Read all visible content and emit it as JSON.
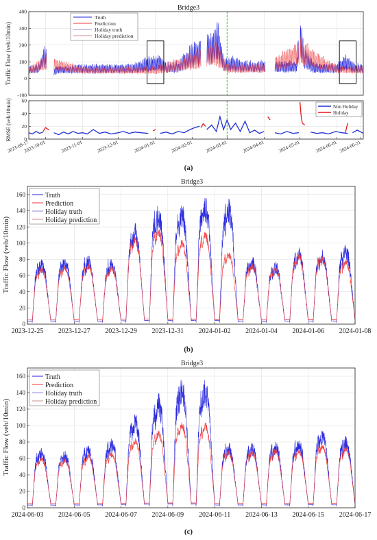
{
  "figure": {
    "captions": [
      "(a)",
      "(b)",
      "(c)"
    ]
  },
  "colors": {
    "truth": "#1f1fdc",
    "prediction": "#ee3a3a",
    "non_holiday": "#1f2fd0",
    "holiday": "#e01818",
    "marker_line": "#22cc22",
    "axis": "#222222",
    "grid": "#d9d9d9"
  },
  "chart_data": [
    {
      "id": "a_top",
      "type": "line",
      "title": "Bridge3",
      "ylabel": "Traffic Flow (veh/10min)",
      "ylim": [
        -100,
        400
      ],
      "yticks": [
        -100,
        0,
        100,
        200,
        300,
        400
      ],
      "legend_position": "top-left",
      "legend": [
        "Truth",
        "Prediction",
        "Holiday truth",
        "Holiday prediction"
      ],
      "grid": true,
      "x_range": [
        "2023-09-17",
        "2024-06-23"
      ],
      "series": [
        {
          "name": "Truth",
          "envelope": {
            "x": [
              "2023-09-17",
              "2023-09-25",
              "2023-10-01",
              "2023-10-05",
              "2023-10-10",
              "2023-10-20",
              "2023-11-01",
              "2023-11-15",
              "2023-12-01",
              "2023-12-15",
              "2023-12-29",
              "2024-01-03",
              "2024-01-10",
              "2024-01-20",
              "2024-01-28",
              "2024-02-03",
              "2024-02-10",
              "2024-02-17",
              "2024-02-22",
              "2024-02-27",
              "2024-03-01",
              "2024-03-05",
              "2024-03-12",
              "2024-03-20",
              "2024-04-01",
              "2024-04-10",
              "2024-04-20",
              "2024-04-28",
              "2024-05-01",
              "2024-05-05",
              "2024-05-12",
              "2024-05-20",
              "2024-06-01",
              "2024-06-08",
              "2024-06-10",
              "2024-06-15",
              "2024-06-23"
            ],
            "upper": [
              75,
              95,
              220,
              0,
              80,
              85,
              90,
              90,
              90,
              95,
              150,
              160,
              100,
              110,
              190,
              230,
              260,
              290,
              370,
              150,
              120,
              140,
              115,
              110,
              115,
              110,
              110,
              110,
              380,
              200,
              100,
              95,
              100,
              150,
              160,
              100,
              90
            ],
            "lower": [
              10,
              10,
              20,
              0,
              10,
              10,
              10,
              10,
              10,
              10,
              5,
              5,
              10,
              10,
              10,
              15,
              15,
              15,
              20,
              10,
              10,
              10,
              10,
              10,
              10,
              10,
              10,
              10,
              20,
              10,
              10,
              10,
              10,
              5,
              5,
              10,
              10
            ]
          }
        },
        {
          "name": "Prediction",
          "envelope": {
            "x": [
              "2023-09-17",
              "2023-10-01",
              "2023-11-01",
              "2023-12-01",
              "2024-01-01",
              "2024-01-28",
              "2024-02-10",
              "2024-02-20",
              "2024-03-01",
              "2024-04-01",
              "2024-05-01",
              "2024-06-01",
              "2024-06-23"
            ],
            "upper": [
              65,
              150,
              70,
              70,
              75,
              150,
              200,
              240,
              90,
              90,
              250,
              80,
              75
            ],
            "lower": [
              15,
              20,
              15,
              15,
              10,
              15,
              20,
              25,
              15,
              15,
              20,
              15,
              15
            ]
          }
        }
      ],
      "annotations": [
        {
          "type": "box",
          "x_start": "2023-12-25",
          "x_end": "2024-01-08",
          "y_min": -30,
          "y_max": 225
        },
        {
          "type": "box",
          "x_start": "2024-06-03",
          "x_end": "2024-06-17",
          "y_min": -30,
          "y_max": 225
        },
        {
          "type": "vline",
          "x": "2024-03-01"
        }
      ]
    },
    {
      "id": "a_rmse",
      "type": "line",
      "ylabel": "RMSE (veh/10min)",
      "ylim": [
        0,
        60
      ],
      "yticks": [
        0,
        20,
        40,
        60
      ],
      "legend_position": "top-right",
      "legend": [
        "Non Holiday",
        "Holiday"
      ],
      "grid": true,
      "x_range": [
        "2023-09-17",
        "2024-06-23"
      ],
      "xtick_labels": [
        "2023-09-17",
        "2023-10-01",
        "2023-11-01",
        "2023-12-01",
        "2024-01-01",
        "2024-02-01",
        "2024-03-01",
        "2024-04-01",
        "2024-05-01",
        "2024-06-01",
        "2024-06-21"
      ],
      "series": [
        {
          "name": "Non Holiday",
          "segments": [
            {
              "x": [
                "2023-09-17",
                "2023-09-20",
                "2023-09-23",
                "2023-09-26",
                "2023-09-29"
              ],
              "y": [
                10,
                8,
                12,
                9,
                11
              ]
            },
            {
              "x": [
                "2023-10-08",
                "2023-10-12",
                "2023-10-16",
                "2023-10-20",
                "2023-10-24",
                "2023-10-28",
                "2023-11-01",
                "2023-11-05",
                "2023-11-10",
                "2023-11-15",
                "2023-11-20",
                "2023-11-25",
                "2023-12-01",
                "2023-12-05",
                "2023-12-10",
                "2023-12-15",
                "2023-12-20",
                "2023-12-26"
              ],
              "y": [
                10,
                7,
                11,
                8,
                12,
                9,
                10,
                8,
                15,
                9,
                11,
                8,
                10,
                12,
                9,
                11,
                10,
                9
              ]
            },
            {
              "x": [
                "2024-01-05",
                "2024-01-10",
                "2024-01-15",
                "2024-01-20",
                "2024-01-25",
                "2024-01-30",
                "2024-02-03",
                "2024-02-07"
              ],
              "y": [
                9,
                11,
                8,
                12,
                10,
                15,
                18,
                20
              ]
            },
            {
              "x": [
                "2024-02-13",
                "2024-02-17",
                "2024-02-21",
                "2024-02-24",
                "2024-02-27",
                "2024-03-01",
                "2024-03-04",
                "2024-03-08",
                "2024-03-12",
                "2024-03-16",
                "2024-03-20",
                "2024-03-24",
                "2024-03-28",
                "2024-04-01"
              ],
              "y": [
                15,
                22,
                12,
                35,
                15,
                30,
                15,
                25,
                12,
                28,
                10,
                14,
                9,
                12
              ]
            },
            {
              "x": [
                "2024-04-10",
                "2024-04-15",
                "2024-04-20",
                "2024-04-25",
                "2024-04-30"
              ],
              "y": [
                10,
                8,
                12,
                9,
                10
              ]
            },
            {
              "x": [
                "2024-05-10",
                "2024-05-15",
                "2024-05-20",
                "2024-05-25",
                "2024-05-31",
                "2024-06-05",
                "2024-06-10"
              ],
              "y": [
                11,
                9,
                10,
                8,
                12,
                10,
                9
              ]
            },
            {
              "x": [
                "2024-06-14",
                "2024-06-18",
                "2024-06-23"
              ],
              "y": [
                10,
                14,
                9
              ]
            }
          ]
        },
        {
          "name": "Holiday",
          "segments": [
            {
              "x": [
                "2023-09-29",
                "2023-10-01",
                "2023-10-04"
              ],
              "y": [
                12,
                18,
                14
              ]
            },
            {
              "x": [
                "2023-12-30",
                "2024-01-01"
              ],
              "y": [
                13,
                15
              ]
            },
            {
              "x": [
                "2024-02-08",
                "2024-02-10",
                "2024-02-12"
              ],
              "y": [
                18,
                24,
                20
              ]
            },
            {
              "x": [
                "2024-04-04",
                "2024-04-06"
              ],
              "y": [
                35,
                30
              ]
            },
            {
              "x": [
                "2024-05-01",
                "2024-05-02",
                "2024-05-03",
                "2024-05-05"
              ],
              "y": [
                58,
                35,
                25,
                22
              ]
            },
            {
              "x": [
                "2024-06-08",
                "2024-06-09",
                "2024-06-10"
              ],
              "y": [
                10,
                18,
                25
              ]
            }
          ]
        }
      ]
    },
    {
      "id": "b",
      "type": "line",
      "title": "Bridge3",
      "ylabel": "Traffic Flow (veh/10min)",
      "ylim": [
        0,
        170
      ],
      "yticks": [
        0,
        20,
        40,
        60,
        80,
        100,
        120,
        140,
        160
      ],
      "legend_position": "top-left",
      "legend": [
        "Truth",
        "Prediction",
        "Holiday truth",
        "Holiday prediction"
      ],
      "grid": true,
      "x_range": [
        "2023-12-25",
        "2024-01-08"
      ],
      "xtick_labels": [
        "2023-12-25",
        "2023-12-27",
        "2023-12-29",
        "2023-12-31",
        "2024-01-02",
        "2024-01-04",
        "2024-01-06",
        "2024-01-08"
      ],
      "series": [
        {
          "name": "Truth",
          "x_days": [
            "2023-12-25",
            "2023-12-26",
            "2023-12-27",
            "2023-12-28",
            "2023-12-29",
            "2023-12-30",
            "2023-12-31",
            "2024-01-01",
            "2024-01-02",
            "2024-01-03",
            "2024-01-04",
            "2024-01-05",
            "2024-01-06",
            "2024-01-07"
          ],
          "daily_peak": [
            82,
            85,
            85,
            82,
            125,
            150,
            150,
            158,
            155,
            85,
            78,
            95,
            92,
            100
          ],
          "daily_min": [
            2,
            2,
            2,
            2,
            2,
            2,
            2,
            2,
            2,
            2,
            2,
            2,
            2,
            2
          ]
        },
        {
          "name": "Prediction",
          "x_days": [
            "2023-12-25",
            "2023-12-26",
            "2023-12-27",
            "2023-12-28",
            "2023-12-29",
            "2023-12-30",
            "2023-12-31",
            "2024-01-01",
            "2024-01-02",
            "2024-01-03",
            "2024-01-04",
            "2024-01-05",
            "2024-01-06",
            "2024-01-07"
          ],
          "daily_peak": [
            70,
            72,
            75,
            72,
            110,
            120,
            105,
            115,
            90,
            75,
            72,
            88,
            85,
            80
          ],
          "daily_min": [
            4,
            4,
            4,
            4,
            4,
            4,
            4,
            4,
            4,
            4,
            4,
            4,
            4,
            4
          ]
        }
      ]
    },
    {
      "id": "c",
      "type": "line",
      "title": "Bridge3",
      "ylabel": "Traffic Flow (veh/10min)",
      "ylim": [
        0,
        170
      ],
      "yticks": [
        0,
        20,
        40,
        60,
        80,
        100,
        120,
        140,
        160
      ],
      "legend_position": "top-left",
      "legend": [
        "Truth",
        "Prediction",
        "Holiday truth",
        "Holiday prediction"
      ],
      "grid": true,
      "x_range": [
        "2024-06-03",
        "2024-06-17"
      ],
      "xtick_labels": [
        "2024-06-03",
        "2024-06-05",
        "2024-06-07",
        "2024-06-09",
        "2024-06-11",
        "2024-06-13",
        "2024-06-15",
        "2024-06-17"
      ],
      "series": [
        {
          "name": "Truth",
          "x_days": [
            "2024-06-03",
            "2024-06-04",
            "2024-06-05",
            "2024-06-06",
            "2024-06-07",
            "2024-06-08",
            "2024-06-09",
            "2024-06-10",
            "2024-06-11",
            "2024-06-12",
            "2024-06-13",
            "2024-06-14",
            "2024-06-15",
            "2024-06-16"
          ],
          "daily_peak": [
            75,
            70,
            78,
            85,
            115,
            140,
            160,
            158,
            80,
            80,
            82,
            85,
            98,
            88
          ],
          "daily_min": [
            2,
            2,
            2,
            2,
            2,
            2,
            2,
            2,
            2,
            2,
            2,
            2,
            2,
            2
          ]
        },
        {
          "name": "Prediction",
          "x_days": [
            "2024-06-03",
            "2024-06-04",
            "2024-06-05",
            "2024-06-06",
            "2024-06-07",
            "2024-06-08",
            "2024-06-09",
            "2024-06-10",
            "2024-06-11",
            "2024-06-12",
            "2024-06-13",
            "2024-06-14",
            "2024-06-15",
            "2024-06-16"
          ],
          "daily_peak": [
            62,
            60,
            65,
            68,
            85,
            95,
            105,
            105,
            70,
            70,
            72,
            72,
            78,
            75
          ],
          "daily_min": [
            4,
            4,
            4,
            4,
            4,
            4,
            4,
            4,
            4,
            4,
            4,
            4,
            4,
            4
          ]
        }
      ]
    }
  ]
}
